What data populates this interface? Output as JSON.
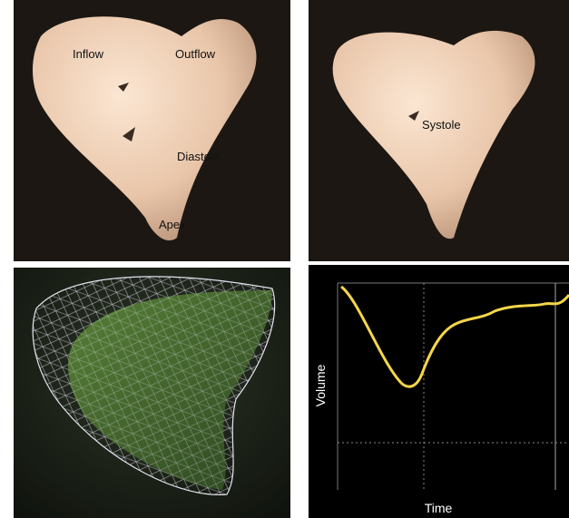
{
  "panels": {
    "diastole": {
      "labels": [
        "Inflow",
        "Outflow",
        "Diastole",
        "Apex"
      ]
    },
    "systole": {
      "labels": [
        "Systole"
      ]
    },
    "volume_curve": {
      "y_label": "Volume",
      "x_label": "Time"
    }
  }
}
